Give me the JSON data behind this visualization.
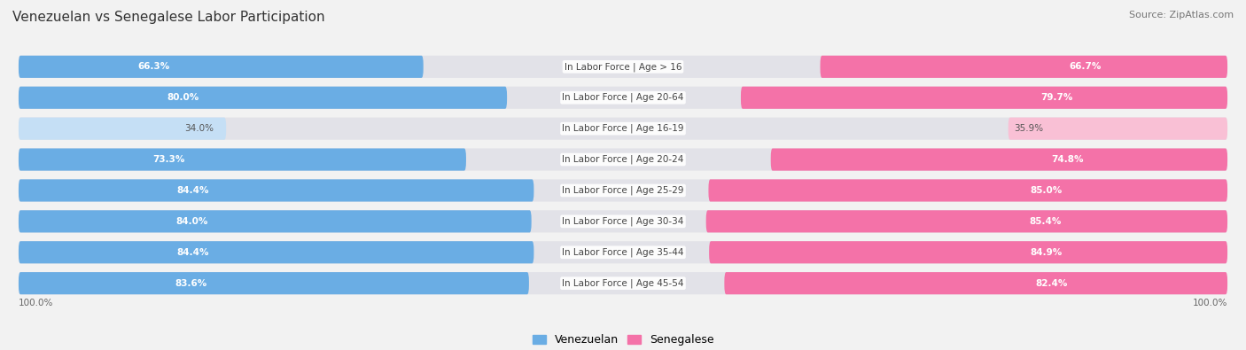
{
  "title": "Venezuelan vs Senegalese Labor Participation",
  "source": "Source: ZipAtlas.com",
  "categories": [
    "In Labor Force | Age > 16",
    "In Labor Force | Age 20-64",
    "In Labor Force | Age 16-19",
    "In Labor Force | Age 20-24",
    "In Labor Force | Age 25-29",
    "In Labor Force | Age 30-34",
    "In Labor Force | Age 35-44",
    "In Labor Force | Age 45-54"
  ],
  "venezuelan_values": [
    66.3,
    80.0,
    34.0,
    73.3,
    84.4,
    84.0,
    84.4,
    83.6
  ],
  "senegalese_values": [
    66.7,
    79.7,
    35.9,
    74.8,
    85.0,
    85.4,
    84.9,
    82.4
  ],
  "venezuelan_color": "#6aade4",
  "venezuelan_light_color": "#c5dff5",
  "senegalese_color": "#f472a8",
  "senegalese_light_color": "#f9c0d5",
  "background_color": "#f2f2f2",
  "bar_bg_color": "#e2e2e8",
  "title_fontsize": 11,
  "source_fontsize": 8,
  "label_fontsize": 7.5,
  "value_fontsize": 7.5,
  "legend_fontsize": 9
}
